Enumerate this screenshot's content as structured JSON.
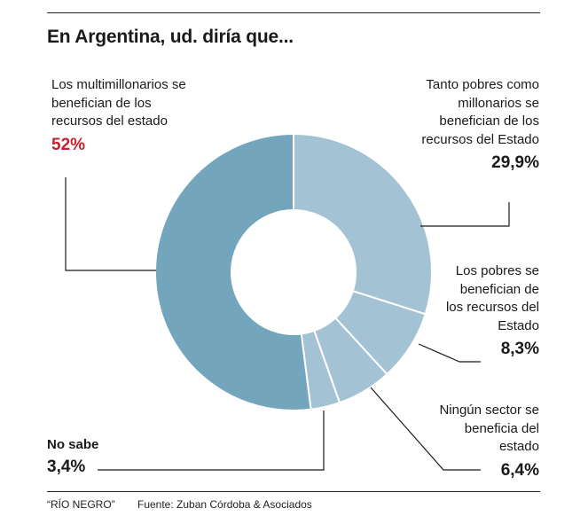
{
  "title": "En Argentina, ud. diría que...",
  "chart_data": {
    "type": "pie",
    "title": "En Argentina, ud. diría que...",
    "slices": [
      {
        "label": "Tanto pobres como millonarios se benefician de los recursos del Estado",
        "value": 29.9,
        "display": "29,9%",
        "color": "#a3c3d4"
      },
      {
        "label": "Los pobres se benefician de los recursos del Estado",
        "value": 8.3,
        "display": "8,3%",
        "color": "#a3c3d4"
      },
      {
        "label": "Ningún sector se beneficia del estado",
        "value": 6.4,
        "display": "6,4%",
        "color": "#a3c3d4"
      },
      {
        "label": "No sabe",
        "value": 3.4,
        "display": "3,4%",
        "color": "#a3c3d4"
      },
      {
        "label": "Los multimillonarios se benefician de los recursos del estado",
        "value": 52,
        "display": "52%",
        "color": "#73a5bd"
      }
    ],
    "highlight_color": "#cc1f2d"
  },
  "labels": {
    "multi": {
      "text": "Los multimillonarios se benefician de los recursos del estado",
      "pct": "52%"
    },
    "tanto": {
      "text": "Tanto pobres como millonarios se benefician de los recursos del Estado",
      "pct": "29,9%"
    },
    "pobres": {
      "text": "Los pobres se benefician de los recursos del Estado",
      "pct": "8,3%"
    },
    "ningun": {
      "text": "Ningún sector se beneficia del estado",
      "pct": "6,4%"
    },
    "nosabe": {
      "text": "No sabe",
      "pct": "3,4%"
    }
  },
  "footer": {
    "source_left": "“RÍO NEGRO”",
    "source_right": "Fuente: Zuban Córdoba & Asociados"
  }
}
